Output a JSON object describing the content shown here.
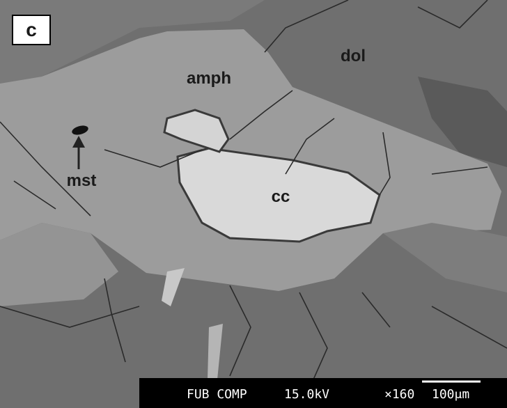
{
  "panel_label": "c",
  "labels": {
    "amph": "amph",
    "dol": "dol",
    "mst": "mst",
    "cc": "cc"
  },
  "scale_bar": {
    "instrument": "FUB COMP",
    "voltage": "15.0kV",
    "magnification": "×160",
    "scale": "100μm"
  }
}
